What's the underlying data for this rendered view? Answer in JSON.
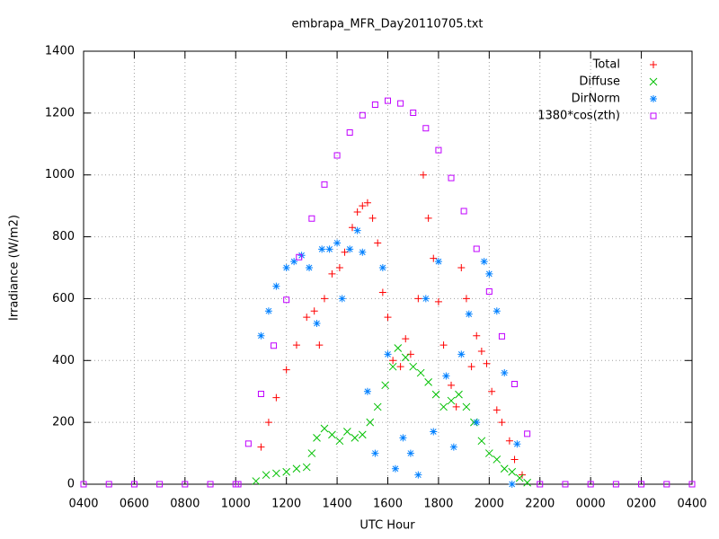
{
  "chart_data": {
    "type": "scatter",
    "title": "embrapa_MFR_Day20110705.txt",
    "xlabel": "UTC Hour",
    "ylabel": "Irradiance (W/m2)",
    "xlim": [
      4,
      28
    ],
    "ylim": [
      0,
      1400
    ],
    "xticks": [
      {
        "value": 4,
        "label": "0400"
      },
      {
        "value": 6,
        "label": "0600"
      },
      {
        "value": 8,
        "label": "0800"
      },
      {
        "value": 10,
        "label": "1000"
      },
      {
        "value": 12,
        "label": "1200"
      },
      {
        "value": 14,
        "label": "1400"
      },
      {
        "value": 16,
        "label": "1600"
      },
      {
        "value": 18,
        "label": "1800"
      },
      {
        "value": 20,
        "label": "2000"
      },
      {
        "value": 22,
        "label": "2200"
      },
      {
        "value": 24,
        "label": "0000"
      },
      {
        "value": 26,
        "label": "0200"
      },
      {
        "value": 28,
        "label": "0400"
      }
    ],
    "yticks": [
      0,
      200,
      400,
      600,
      800,
      1000,
      1200,
      1400
    ],
    "grid": true,
    "legend": "top-right",
    "series": [
      {
        "name": "Total",
        "color": "#ff0000",
        "marker": "plus",
        "x": [
          11.0,
          11.3,
          11.6,
          12.0,
          12.4,
          12.8,
          13.1,
          13.3,
          13.5,
          13.8,
          14.1,
          14.3,
          14.6,
          14.8,
          15.0,
          15.2,
          15.4,
          15.6,
          15.8,
          16.0,
          16.2,
          16.5,
          16.7,
          16.9,
          17.2,
          17.4,
          17.6,
          17.8,
          18.0,
          18.2,
          18.5,
          18.7,
          18.9,
          19.1,
          19.3,
          19.5,
          19.7,
          19.9,
          20.1,
          20.3,
          20.5,
          20.8,
          21.0,
          21.3
        ],
        "values": [
          120,
          200,
          280,
          370,
          450,
          540,
          560,
          450,
          600,
          680,
          700,
          750,
          830,
          880,
          900,
          910,
          860,
          780,
          620,
          540,
          400,
          380,
          470,
          420,
          600,
          1000,
          860,
          730,
          590,
          450,
          320,
          250,
          700,
          600,
          380,
          480,
          430,
          390,
          300,
          240,
          200,
          140,
          80,
          30
        ]
      },
      {
        "name": "Diffuse",
        "color": "#00c000",
        "marker": "cross",
        "x": [
          10.8,
          11.2,
          11.6,
          12.0,
          12.4,
          12.8,
          13.0,
          13.2,
          13.5,
          13.8,
          14.1,
          14.4,
          14.7,
          15.0,
          15.3,
          15.6,
          15.9,
          16.2,
          16.4,
          16.7,
          17.0,
          17.3,
          17.6,
          17.9,
          18.2,
          18.5,
          18.8,
          19.1,
          19.4,
          19.7,
          20.0,
          20.3,
          20.6,
          20.9,
          21.2,
          21.5
        ],
        "values": [
          10,
          30,
          35,
          40,
          50,
          55,
          100,
          150,
          180,
          160,
          140,
          170,
          150,
          160,
          200,
          250,
          320,
          380,
          440,
          410,
          380,
          360,
          330,
          290,
          250,
          270,
          290,
          250,
          200,
          140,
          100,
          80,
          50,
          40,
          20,
          5
        ]
      },
      {
        "name": "DirNorm",
        "color": "#0080ff",
        "marker": "star",
        "x": [
          11.0,
          11.3,
          11.6,
          12.0,
          12.3,
          12.6,
          12.9,
          13.2,
          13.4,
          13.7,
          14.0,
          14.2,
          14.5,
          14.8,
          15.0,
          15.2,
          15.5,
          15.8,
          16.0,
          16.3,
          16.6,
          16.9,
          17.2,
          17.5,
          17.8,
          18.0,
          18.3,
          18.6,
          18.9,
          19.2,
          19.5,
          19.8,
          20.0,
          20.3,
          20.6,
          20.9,
          21.1
        ],
        "values": [
          480,
          560,
          640,
          700,
          720,
          740,
          700,
          520,
          760,
          760,
          780,
          600,
          760,
          820,
          750,
          300,
          100,
          700,
          420,
          50,
          150,
          100,
          30,
          600,
          170,
          720,
          350,
          120,
          420,
          550,
          200,
          720,
          680,
          560,
          360,
          0,
          130
        ]
      },
      {
        "name": "1380*cos(zth)",
        "color": "#c000ff",
        "marker": "square",
        "x": [
          4,
          5,
          6,
          7,
          8,
          9,
          10,
          10.1,
          10.5,
          11,
          11.5,
          12,
          12.5,
          13,
          13.5,
          14,
          14.5,
          15,
          15.5,
          16,
          16.5,
          17,
          17.5,
          18,
          18.5,
          19,
          19.5,
          20,
          20.5,
          21,
          21.5,
          22,
          23,
          24,
          25,
          26,
          27,
          28
        ],
        "values": [
          0,
          0,
          0,
          0,
          0,
          0,
          0,
          0,
          131,
          292,
          448,
          596,
          734,
          859,
          969,
          1063,
          1137,
          1193,
          1227,
          1240,
          1231,
          1201,
          1151,
          1080,
          990,
          883,
          761,
          623,
          478,
          324,
          163,
          0,
          0,
          0,
          0,
          0,
          0,
          0
        ]
      }
    ]
  }
}
